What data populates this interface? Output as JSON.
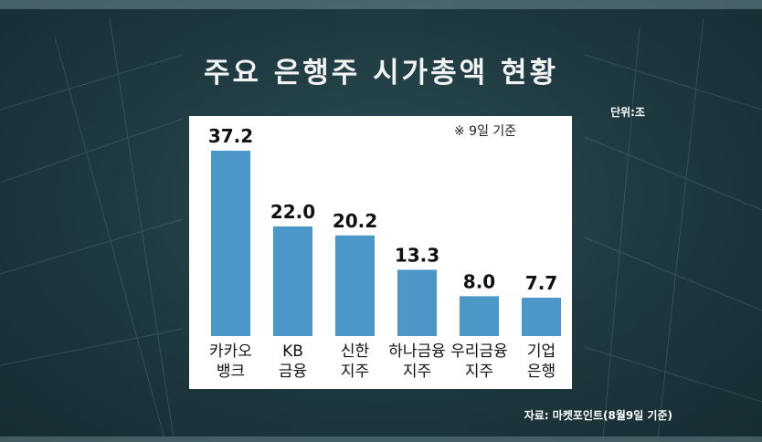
{
  "title": "주요 은행주 시가총액 현황",
  "unit_label": "단위:조",
  "source_label": "자료: 마켓포인트(8월9일 기준)",
  "chart_data": {
    "type": "bar",
    "title": "주요 은행주 시가총액 현황",
    "note": "※ 9일 기준",
    "categories": [
      [
        "카카오",
        "뱅크"
      ],
      [
        "KB",
        "금융"
      ],
      [
        "신한",
        "지주"
      ],
      [
        "하나금융",
        "지주"
      ],
      [
        "우리금융",
        "지주"
      ],
      [
        "기업",
        "은행"
      ]
    ],
    "values": [
      37.2,
      22.0,
      20.2,
      13.3,
      8.0,
      7.7
    ],
    "value_labels": [
      "37.2",
      "22.0",
      "20.2",
      "13.3",
      "8.0",
      "7.7"
    ],
    "ylim": [
      0,
      40
    ],
    "grid": false,
    "bar_color": "#4a97c8",
    "xlabel": "",
    "ylabel": ""
  }
}
